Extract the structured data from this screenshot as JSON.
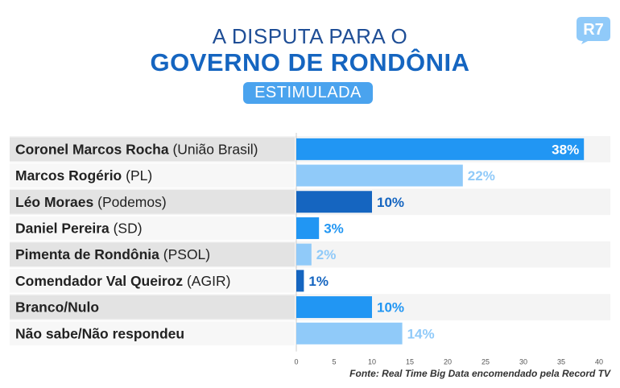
{
  "header": {
    "line1": "A DISPUTA PARA O",
    "line2": "GOVERNO DE RONDÔNIA",
    "badge": "ESTIMULADA",
    "logo": "R7"
  },
  "colors": {
    "bar_main": "#2196f3",
    "bar_light": "#90caf9",
    "bar_dark": "#1565c0",
    "row_gray": "#e6e6e6"
  },
  "chart_data": {
    "type": "bar",
    "orientation": "horizontal",
    "title": "A DISPUTA PARA O GOVERNO DE RONDÔNIA",
    "subtitle": "ESTIMULADA",
    "categories": [
      {
        "name": "Coronel Marcos Rocha",
        "party": "(União Brasil)"
      },
      {
        "name": "Marcos Rogério",
        "party": "(PL)"
      },
      {
        "name": "Léo Moraes",
        "party": "(Podemos)"
      },
      {
        "name": "Daniel Pereira",
        "party": "(SD)"
      },
      {
        "name": "Pimenta de Rondônia",
        "party": "(PSOL)"
      },
      {
        "name": "Comendador Val Queiroz",
        "party": "(AGIR)"
      },
      {
        "name": "Branco/Nulo",
        "party": ""
      },
      {
        "name": "Não sabe/Não respondeu",
        "party": ""
      }
    ],
    "values": [
      38,
      22,
      10,
      3,
      2,
      1,
      10,
      14
    ],
    "value_labels": [
      "38%",
      "22%",
      "10%",
      "3%",
      "2%",
      "1%",
      "10%",
      "14%"
    ],
    "bar_colors": [
      "#2196f3",
      "#90caf9",
      "#1565c0",
      "#2196f3",
      "#90caf9",
      "#1565c0",
      "#2196f3",
      "#90caf9"
    ],
    "label_colors": [
      "#ffffff",
      "#90caf9",
      "#1565c0",
      "#2196f3",
      "#90caf9",
      "#1565c0",
      "#2196f3",
      "#90caf9"
    ],
    "xlim": [
      0,
      40
    ],
    "xticks": [
      0,
      5,
      10,
      15,
      20,
      25,
      30,
      35,
      40
    ],
    "xlabel": "",
    "ylabel": ""
  },
  "source": "Fonte: Real Time Big Data encomendado pela Record TV"
}
